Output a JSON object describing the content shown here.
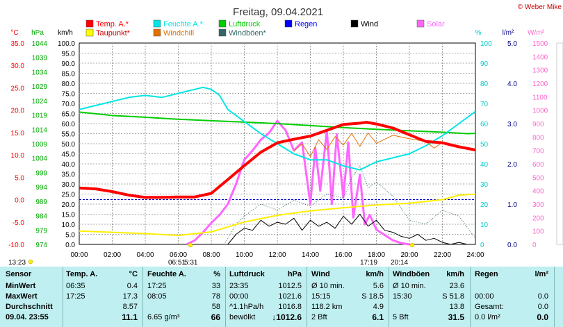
{
  "chart_data": {
    "type": "line",
    "title": "Freitag, 09.04.2021",
    "copyright": "© Weber Mike",
    "x_ticks": [
      "00:00",
      "02:00",
      "04:00",
      "06:00",
      "08:00",
      "10:00",
      "12:00",
      "14:00",
      "16:00",
      "18:00",
      "20:00",
      "22:00",
      "24:00"
    ],
    "left_axes": [
      {
        "unit": "°C",
        "color": "#ff0000",
        "ticks": [
          "35.0",
          "30.0",
          "25.0",
          "20.0",
          "15.0",
          "10.0",
          "5.0",
          "0.0",
          "-5.0",
          "-10.0"
        ]
      },
      {
        "unit": "hPa",
        "color": "#00aa00",
        "ticks": [
          "1044",
          "1039",
          "1034",
          "1029",
          "1024",
          "1019",
          "1014",
          "1009",
          "1004",
          "999",
          "994",
          "989",
          "984",
          "979",
          "974"
        ]
      },
      {
        "unit": "km/h",
        "color": "#000000",
        "ticks": [
          "100.0",
          "95.0",
          "90.0",
          "85.0",
          "80.0",
          "75.0",
          "70.0",
          "65.0",
          "60.0",
          "55.0",
          "50.0",
          "45.0",
          "40.0",
          "35.0",
          "30.0",
          "25.0",
          "20.0",
          "15.0",
          "10.0",
          "5.0",
          "0.0"
        ]
      }
    ],
    "right_axes": [
      {
        "unit": "%",
        "color": "#00cccc",
        "ticks": [
          "100",
          "90",
          "80",
          "70",
          "60",
          "50",
          "40",
          "30",
          "20",
          "10",
          "0"
        ]
      },
      {
        "unit": "l/m²",
        "color": "#000080",
        "ticks": [
          "5.0",
          "4.0",
          "3.0",
          "2.0",
          "1.0",
          "0.0"
        ]
      },
      {
        "unit": "W/m²",
        "color": "#ff66cc",
        "ticks": [
          "1500",
          "1400",
          "1300",
          "1200",
          "1100",
          "1000",
          "900",
          "800",
          "700",
          "600",
          "500",
          "400",
          "300",
          "200",
          "100",
          "0"
        ]
      }
    ],
    "legend": [
      {
        "name": "Temp. A.*",
        "color": "#ff0000"
      },
      {
        "name": "Feuchte A.*",
        "color": "#00e5e5"
      },
      {
        "name": "Luftdruck",
        "color": "#00cc00"
      },
      {
        "name": "Regen",
        "color": "#0000ff"
      },
      {
        "name": "Wind",
        "color": "#000000"
      },
      {
        "name": "Solar",
        "color": "#ff66ff"
      },
      {
        "name": "Taupunkt*",
        "color": "#ffff00"
      },
      {
        "name": "Windchill",
        "color": "#e07000"
      },
      {
        "name": "Windböen*",
        "color": "#336666"
      }
    ],
    "sun_marks": [
      "13:23",
      "06:51",
      "5:31",
      "17:19",
      "20:14"
    ],
    "series": [
      {
        "name": "Temp. A.*",
        "unit": "°C",
        "x": [
          0,
          1,
          2,
          3,
          4,
          5,
          6,
          7,
          8,
          9,
          10,
          11,
          12,
          13,
          14,
          15,
          16,
          17,
          17.4,
          18,
          19,
          20,
          21,
          22,
          23,
          24
        ],
        "values": [
          2.6,
          2.4,
          1.8,
          1.0,
          0.5,
          0.5,
          0.6,
          0.6,
          1.4,
          4.5,
          7.6,
          10.6,
          12.7,
          13.5,
          14.2,
          15.5,
          16.8,
          17.1,
          17.3,
          16.9,
          16.0,
          14.5,
          13.0,
          12.7,
          11.8,
          11.1
        ]
      },
      {
        "name": "Feuchte A.*",
        "unit": "%",
        "x": [
          0,
          1,
          2,
          3,
          4,
          5,
          6,
          7,
          7.5,
          8,
          8.5,
          9,
          10,
          11,
          12,
          13,
          14,
          15,
          16,
          17,
          18,
          19,
          20,
          21,
          22,
          23,
          24
        ],
        "values": [
          67,
          69,
          71,
          73,
          74,
          73,
          75,
          77,
          78,
          77,
          74,
          67,
          61,
          55,
          50,
          45,
          42,
          42,
          39,
          37,
          41,
          43,
          45,
          49,
          54,
          60,
          66
        ]
      },
      {
        "name": "Luftdruck",
        "unit": "hPa",
        "x": [
          0,
          2,
          4,
          6,
          8,
          10,
          12,
          14,
          16,
          18,
          20,
          22,
          23.5,
          24
        ],
        "values": [
          1020,
          1018.8,
          1018.2,
          1017.5,
          1017,
          1016.5,
          1016,
          1015.3,
          1014.6,
          1014,
          1013.5,
          1013,
          1012.5,
          1012.6
        ]
      },
      {
        "name": "Taupunkt*",
        "unit": "°C",
        "x": [
          0,
          2,
          4,
          6,
          8,
          10,
          12,
          14,
          16,
          18,
          20,
          22,
          23,
          24
        ],
        "values": [
          -7.0,
          -7.3,
          -7.6,
          -8.0,
          -7.2,
          -5.0,
          -3.5,
          -2.5,
          -1.8,
          -1.2,
          -0.8,
          0.0,
          1.0,
          1.2
        ]
      },
      {
        "name": "Windchill",
        "unit": "°C",
        "x": [
          13,
          13.5,
          14,
          14.5,
          15,
          15.5,
          16,
          16.5,
          17,
          17.5,
          18,
          19,
          20,
          21,
          21.5,
          22
        ],
        "values": [
          10.8,
          12.5,
          9.6,
          13.4,
          11.2,
          14.1,
          12.2,
          14.8,
          11.9,
          14.9,
          12.6,
          14.4,
          13.6,
          13.0,
          11.5,
          12.8
        ]
      },
      {
        "name": "Wind",
        "unit": "km/h",
        "x": [
          9,
          9.5,
          10,
          10.5,
          11,
          11.5,
          12,
          12.5,
          13,
          13.5,
          14,
          14.5,
          15,
          15.5,
          16,
          16.5,
          17,
          17.5,
          18,
          18.5,
          19,
          19.5,
          20,
          20.5,
          21,
          21.5,
          22,
          22.5,
          23,
          23.5,
          24
        ],
        "values": [
          0,
          5,
          8,
          7,
          12,
          9,
          11,
          10,
          13,
          7,
          12,
          9,
          11,
          8,
          14,
          10,
          15,
          9,
          12,
          7,
          6,
          4,
          3,
          5,
          2,
          3,
          1,
          0,
          1,
          0,
          0
        ]
      },
      {
        "name": "Windböen*",
        "unit": "km/h",
        "x": [
          8.8,
          9.5,
          10,
          11,
          12,
          13,
          14,
          15,
          16,
          16.5,
          17,
          17.5,
          18,
          19,
          19.5,
          20,
          21,
          22,
          23,
          24
        ],
        "values": [
          0,
          10,
          14,
          20,
          17,
          22,
          19,
          25,
          23,
          33,
          39,
          28,
          31,
          24,
          18,
          12,
          10,
          17,
          14,
          3
        ]
      },
      {
        "name": "Solar",
        "unit": "W/m²",
        "x": [
          6.5,
          7,
          7.5,
          8,
          8.5,
          9,
          9.5,
          10,
          10.5,
          11,
          11.5,
          12,
          12.5,
          13,
          13.5,
          14,
          14.3,
          14.6,
          15,
          15.3,
          15.6,
          16,
          16.3,
          16.6,
          17,
          17.3,
          17.6,
          18,
          18.5,
          19,
          19.5,
          20
        ],
        "values": [
          0,
          30,
          90,
          160,
          220,
          300,
          450,
          630,
          700,
          780,
          830,
          920,
          850,
          700,
          760,
          300,
          720,
          400,
          850,
          300,
          820,
          350,
          760,
          200,
          520,
          150,
          220,
          110,
          70,
          30,
          10,
          0
        ]
      }
    ]
  },
  "table": {
    "sunrise_time": "13:23",
    "headers": [
      "Sensor",
      "Temp. A.",
      "°C",
      "Feuchte A.",
      "%",
      "Luftdruck",
      "hPa",
      "Wind",
      "km/h",
      "Windböen",
      "km/h",
      "Regen",
      "l/m²"
    ],
    "rows": [
      {
        "label": "MinWert",
        "cells": [
          "06:35",
          "0.4",
          "17:25",
          "33",
          "23:35",
          "1012.5",
          "Ø 10 min.",
          "5.6",
          "Ø 10 min.",
          "23.6",
          "",
          ""
        ]
      },
      {
        "label": "MaxWert",
        "cells": [
          "17:25",
          "17.3",
          "08:05",
          "78",
          "00:00",
          "1021.6",
          "15:15",
          "S 18.5",
          "15:30",
          "S 51.8",
          "00:00",
          "0.0"
        ]
      },
      {
        "label": "Durchschnitt",
        "cells": [
          "",
          "8.57",
          "",
          "58",
          "^1.1hPa/h",
          "1016.8",
          "118.2 km",
          "4.9",
          "",
          "13.8",
          "Gesamt:",
          "0.0"
        ]
      },
      {
        "label": "09.04. 23:55",
        "cells": [
          "",
          "11.1",
          "6.65 g/m³",
          "66",
          "bewölkt",
          "↓1012.6",
          "2 Bft",
          "6.1",
          "5 Bft",
          "31.5",
          "0.0 l/m²",
          "0.0"
        ]
      }
    ]
  }
}
